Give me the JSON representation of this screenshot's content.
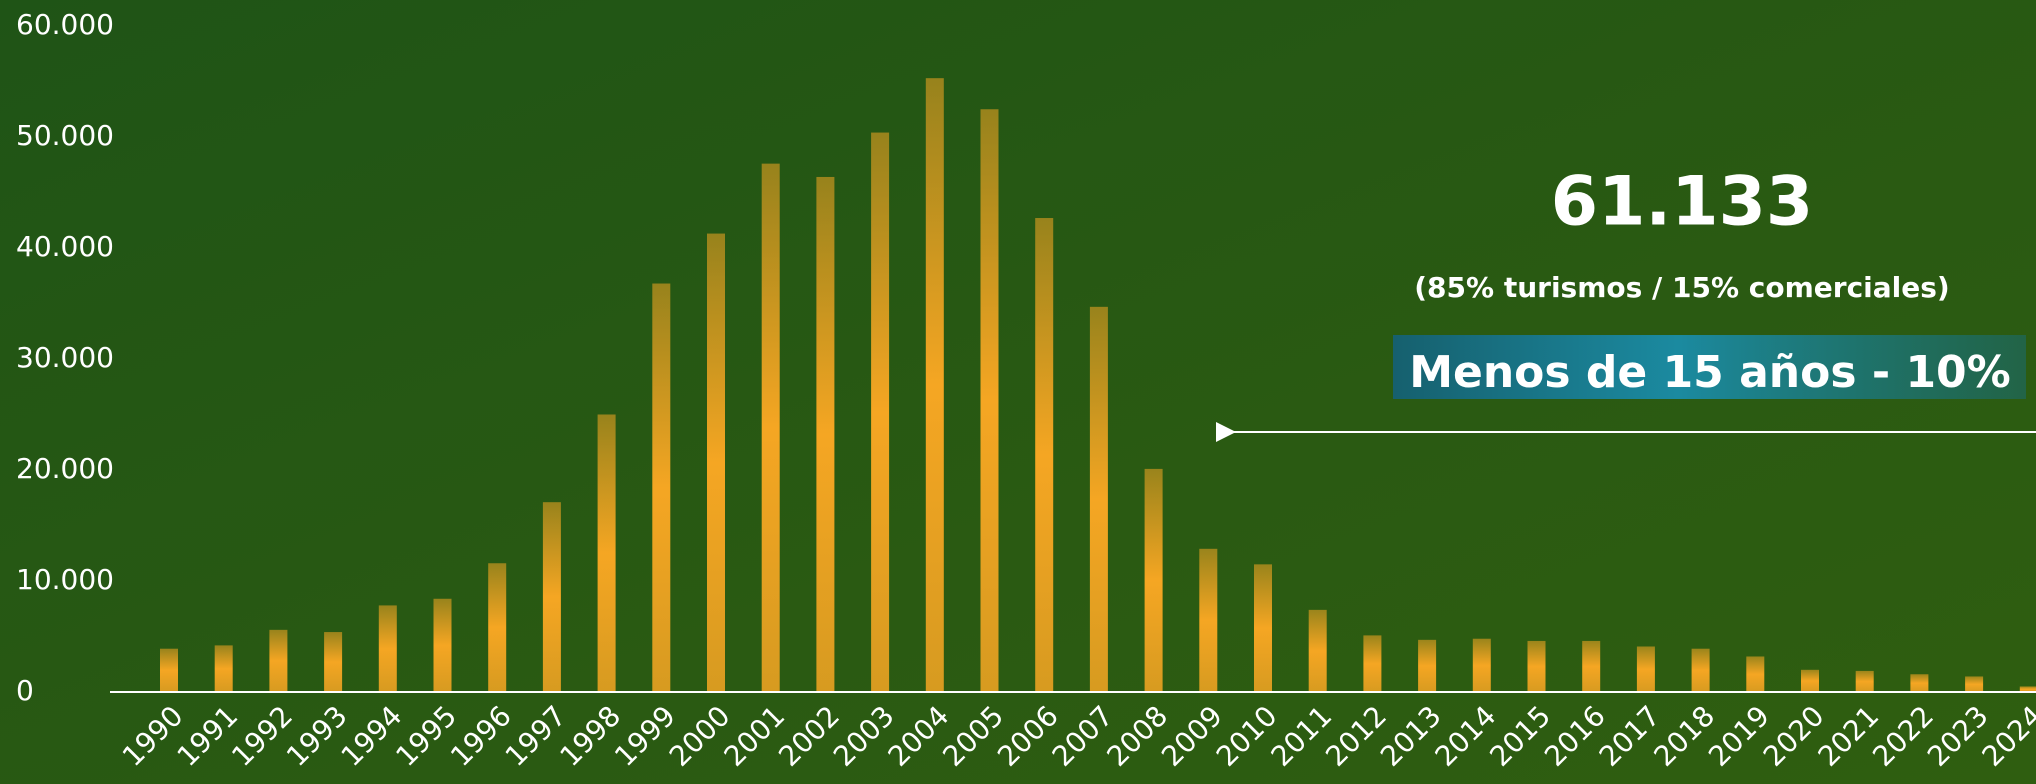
{
  "chart_data": {
    "type": "bar",
    "categories": [
      "1990",
      "1991",
      "1992",
      "1993",
      "1994",
      "1995",
      "1996",
      "1997",
      "1998",
      "1999",
      "2000",
      "2001",
      "2002",
      "2003",
      "2004",
      "2005",
      "2006",
      "2007",
      "2008",
      "2009",
      "2010",
      "2011",
      "2012",
      "2013",
      "2014",
      "2015",
      "2016",
      "2017",
      "2018",
      "2019",
      "2020",
      "2021",
      "2022",
      "2023",
      "2024"
    ],
    "values": [
      3900,
      4200,
      5600,
      5400,
      7800,
      8400,
      11600,
      17100,
      25000,
      36800,
      41300,
      47600,
      46400,
      50400,
      55300,
      52500,
      42700,
      34700,
      20100,
      12900,
      11500,
      7400,
      5100,
      4700,
      4800,
      4600,
      4600,
      4100,
      3900,
      3200,
      2000,
      1900,
      1600,
      1400,
      500
    ],
    "color": "#f5a623",
    "ylim": [
      0,
      60000
    ],
    "yticks": [
      0,
      {
        "value": 10000,
        "label": "10.000"
      },
      {
        "value": 20000,
        "label": "20.000"
      },
      {
        "value": 30000,
        "label": "30.000"
      },
      {
        "value": 40000,
        "label": "40.000"
      },
      {
        "value": 50000,
        "label": "50.000"
      },
      {
        "value": 60000,
        "label": "60.000"
      }
    ],
    "annotations": [
      "61.133",
      "(85% turismos / 15% comerciales)",
      "Menos de 15 años - 10%"
    ]
  }
}
